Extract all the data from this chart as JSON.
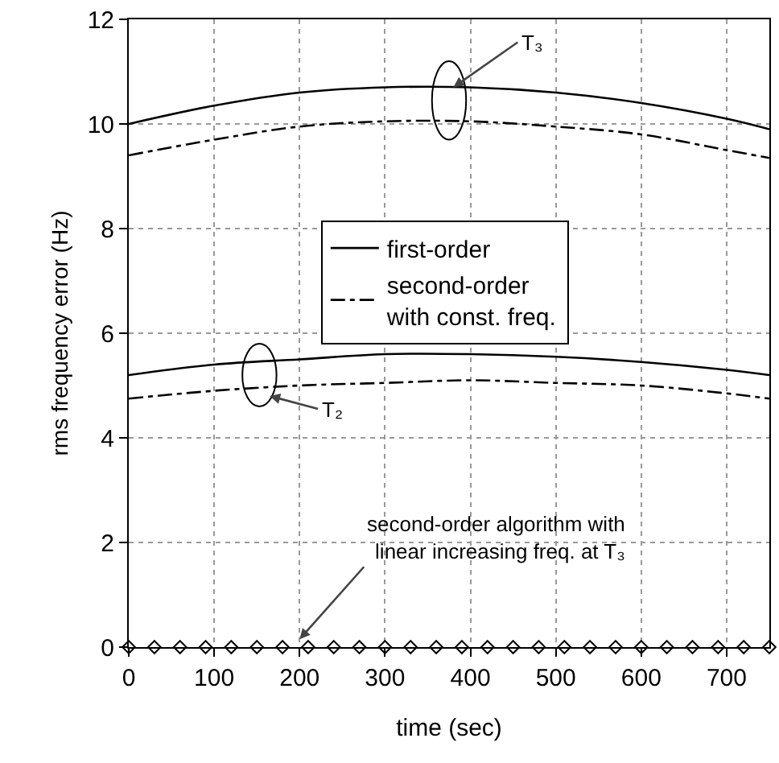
{
  "chart_data": {
    "type": "line",
    "xlabel": "time (sec)",
    "ylabel": "rms frequency error (Hz)",
    "xlim": [
      0,
      750
    ],
    "xticks": [
      0,
      100,
      200,
      300,
      400,
      500,
      600,
      700
    ],
    "ylim": [
      0,
      12
    ],
    "yticks": [
      0,
      2,
      4,
      6,
      8,
      10,
      12
    ],
    "grid": true,
    "legend": "center",
    "series": [
      {
        "name": "first-order",
        "color": "#000000",
        "line_style": "solid",
        "x": [
          0,
          100,
          200,
          300,
          400,
          500,
          600,
          700,
          750
        ],
        "values": [
          10.0,
          10.35,
          10.6,
          10.7,
          10.7,
          10.6,
          10.4,
          10.1,
          9.9
        ]
      },
      {
        "name": "second-order\nwith const. freq.",
        "color": "#000000",
        "line_style": "dashed",
        "x": [
          0,
          100,
          200,
          300,
          400,
          500,
          600,
          700,
          750
        ],
        "values": [
          9.4,
          9.7,
          9.95,
          10.05,
          10.05,
          9.95,
          9.8,
          9.5,
          9.35
        ]
      },
      {
        "color": "#000000",
        "line_style": "solid",
        "x": [
          0,
          100,
          200,
          300,
          400,
          500,
          600,
          700,
          750
        ],
        "values": [
          5.2,
          5.4,
          5.5,
          5.6,
          5.6,
          5.55,
          5.45,
          5.3,
          5.2
        ]
      },
      {
        "color": "#000000",
        "line_style": "dashed",
        "x": [
          0,
          100,
          200,
          300,
          400,
          500,
          600,
          700,
          750
        ],
        "values": [
          4.75,
          4.9,
          5.0,
          5.05,
          5.1,
          5.05,
          5.0,
          4.85,
          4.75
        ]
      },
      {
        "type": "scatter",
        "marker": "diamond",
        "color": "#000000",
        "x": [
          0,
          30,
          60,
          90,
          120,
          150,
          180,
          210,
          240,
          270,
          300,
          330,
          360,
          390,
          420,
          450,
          480,
          510,
          540,
          570,
          600,
          630,
          660,
          690,
          720,
          750
        ],
        "values": [
          0,
          0,
          0,
          0,
          0,
          0,
          0,
          0,
          0,
          0,
          0,
          0,
          0,
          0,
          0,
          0,
          0,
          0,
          0,
          0,
          0,
          0,
          0,
          0,
          0,
          0
        ]
      }
    ],
    "annotations": [
      {
        "text": "T₃",
        "x": 380,
        "y": 10.7
      },
      {
        "text": "T₂",
        "x": 165,
        "y": 4.8
      },
      {
        "text": "second-order algorithm with\nlinear increasing freq. at T₃",
        "x": 200,
        "y": 0.15
      }
    ]
  }
}
